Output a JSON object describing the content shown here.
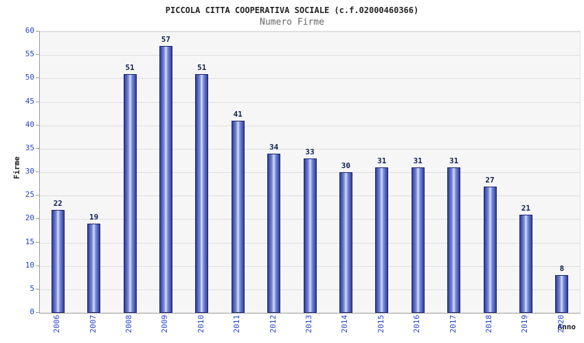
{
  "colors": {
    "title_text": "#222222",
    "subtitle_text": "#666666",
    "axis_text": "#2442c8",
    "value_text": "#0d2050",
    "bar_dark": "#2e3d9b",
    "bar_light": "#d9e0f8",
    "bar_border": "#1c2470",
    "plot_bg": "#f6f6f6",
    "grid": "#dddddd"
  },
  "chart_data": {
    "type": "bar",
    "title": "PICCOLA CITTA COOPERATIVA SOCIALE (c.f.02000460366)",
    "subtitle": "Numero Firme",
    "xlabel": "Anno",
    "ylabel": "Firme",
    "categories": [
      "2006",
      "2007",
      "2008",
      "2009",
      "2010",
      "2011",
      "2012",
      "2013",
      "2014",
      "2015",
      "2016",
      "2017",
      "2018",
      "2019",
      "2020"
    ],
    "values": [
      22,
      19,
      51,
      57,
      51,
      41,
      34,
      33,
      30,
      31,
      31,
      31,
      27,
      21,
      8
    ],
    "ylim": [
      0,
      60
    ],
    "ytick_step": 5,
    "grid": true,
    "legend": "none"
  }
}
